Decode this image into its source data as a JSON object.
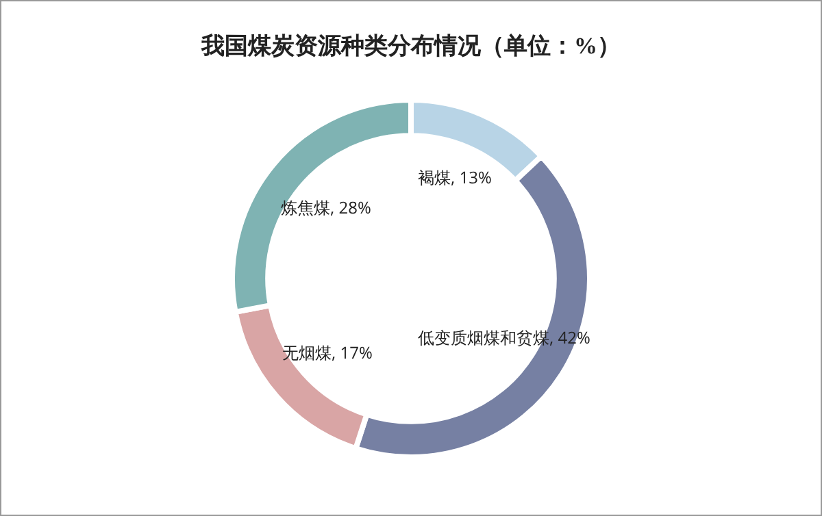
{
  "chart_data": {
    "type": "donut",
    "title": "我国煤炭资源种类分布情况（单位：%）",
    "categories": [
      "褐煤",
      "低变质烟煤和贫煤",
      "无烟煤",
      "炼焦煤"
    ],
    "values": [
      13,
      42,
      17,
      28
    ],
    "value_labels": [
      "13%",
      "42%",
      "17%",
      "28%"
    ],
    "colors": [
      "#b8d4e6",
      "#7680a3",
      "#d9a5a5",
      "#7fb3b3"
    ],
    "legend": false
  }
}
